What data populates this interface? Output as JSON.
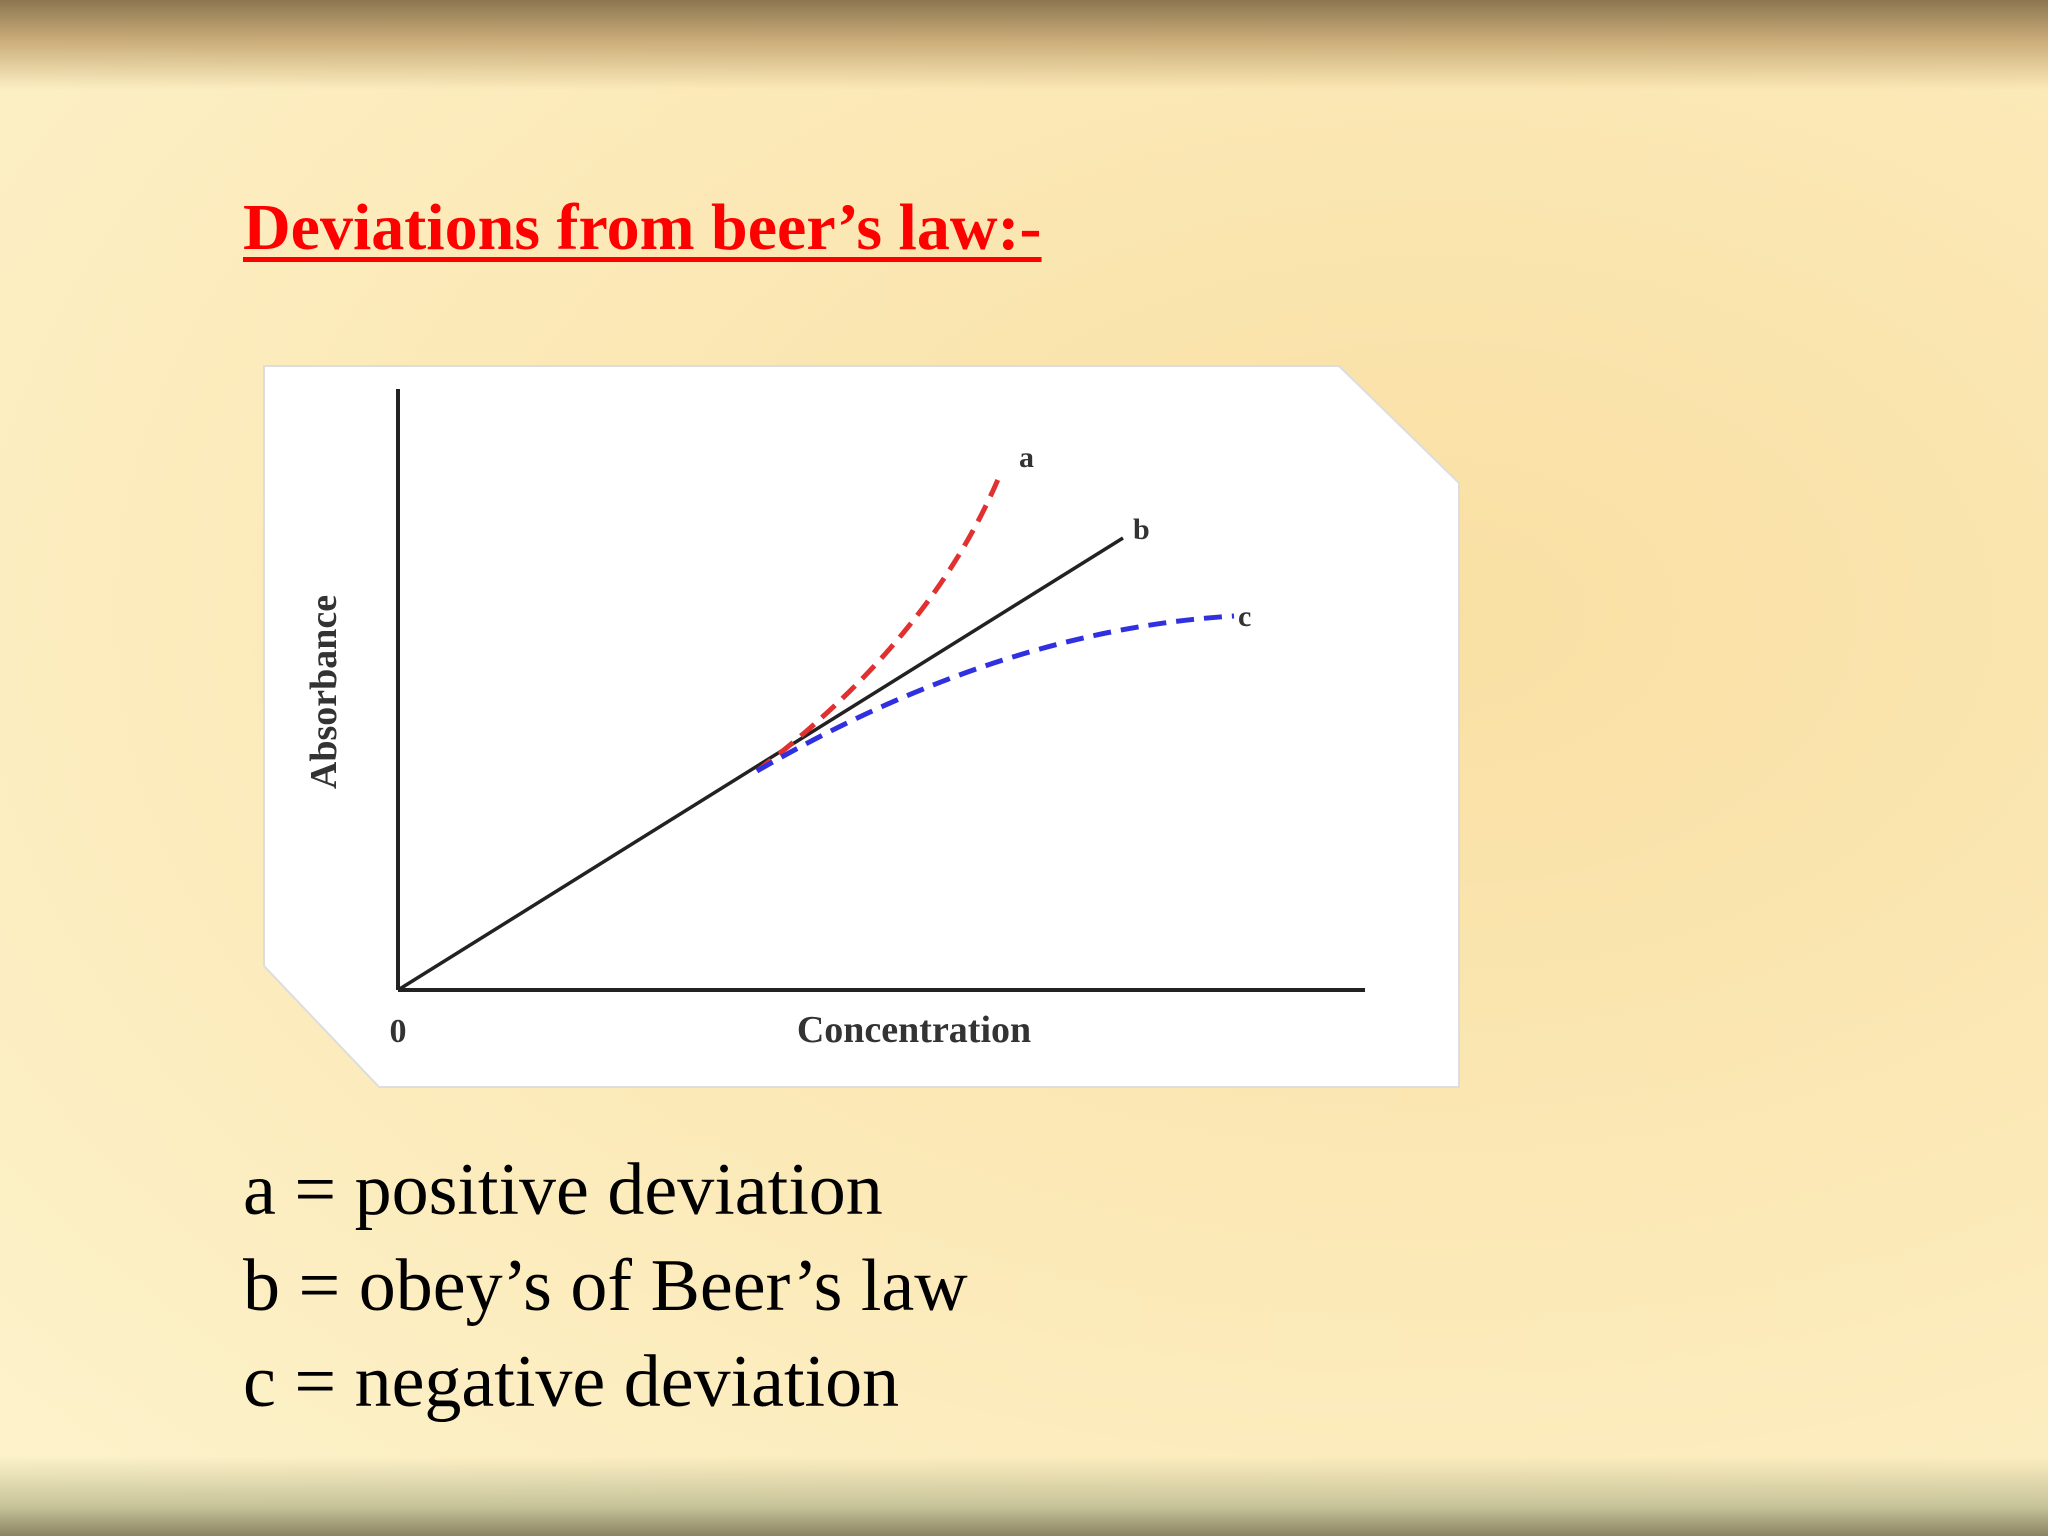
{
  "header": {
    "title": "Deviations from beer’s law:-"
  },
  "diagram": {
    "y_label": "Absorbance",
    "x_label": "Concentration",
    "origin_label": "0",
    "curve_labels": [
      "a",
      "b",
      "c"
    ]
  },
  "legend": [
    "a = positive deviation",
    "b = obey’s of Beer’s law",
    "c = negative deviation"
  ]
}
